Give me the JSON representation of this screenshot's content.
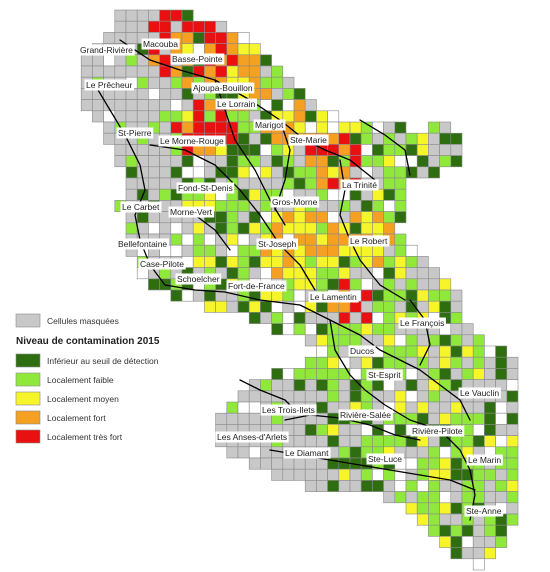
{
  "colors": {
    "masked": "#c8c8c8",
    "below_detection": "#2f6e10",
    "low": "#8fe83a",
    "medium": "#f5f52a",
    "high": "#f5a020",
    "very_high": "#e81010",
    "road": "#000000",
    "border": "#cc2a1c"
  },
  "legend": {
    "masked_label": "Cellules masquées",
    "title": "Niveau de contamination 2015",
    "items": [
      {
        "key": "below_detection",
        "label": "Inférieur au seuil de détection"
      },
      {
        "key": "low",
        "label": "Localement faible"
      },
      {
        "key": "medium",
        "label": "Localement moyen"
      },
      {
        "key": "high",
        "label": "Localement fort"
      },
      {
        "key": "very_high",
        "label": "Localement très fort"
      }
    ]
  },
  "communes": [
    "Grand-Rivière",
    "Macouba",
    "Basse-Pointe",
    "Le Prêcheur",
    "Ajoupa-Bouillon",
    "Le Lorrain",
    "Marigot",
    "St-Pierre",
    "Le Morne-Rouge",
    "Ste-Marie",
    "Fond-St-Denis",
    "La Trinité",
    "Le Carbet",
    "Gros-Morne",
    "Morne-Vert",
    "Bellefontaine",
    "St-Joseph",
    "Le Robert",
    "Case-Pilote",
    "Schoelcher",
    "Fort-de-France",
    "Le Lamentin",
    "Le François",
    "Ducos",
    "St-Esprit",
    "Le Vauclin",
    "Les Trois-Ilets",
    "Rivière-Salée",
    "Les Anses-d'Arlets",
    "Rivière-Pilote",
    "Le Diamant",
    "Ste-Luce",
    "Le Marin",
    "Ste-Anne"
  ]
}
